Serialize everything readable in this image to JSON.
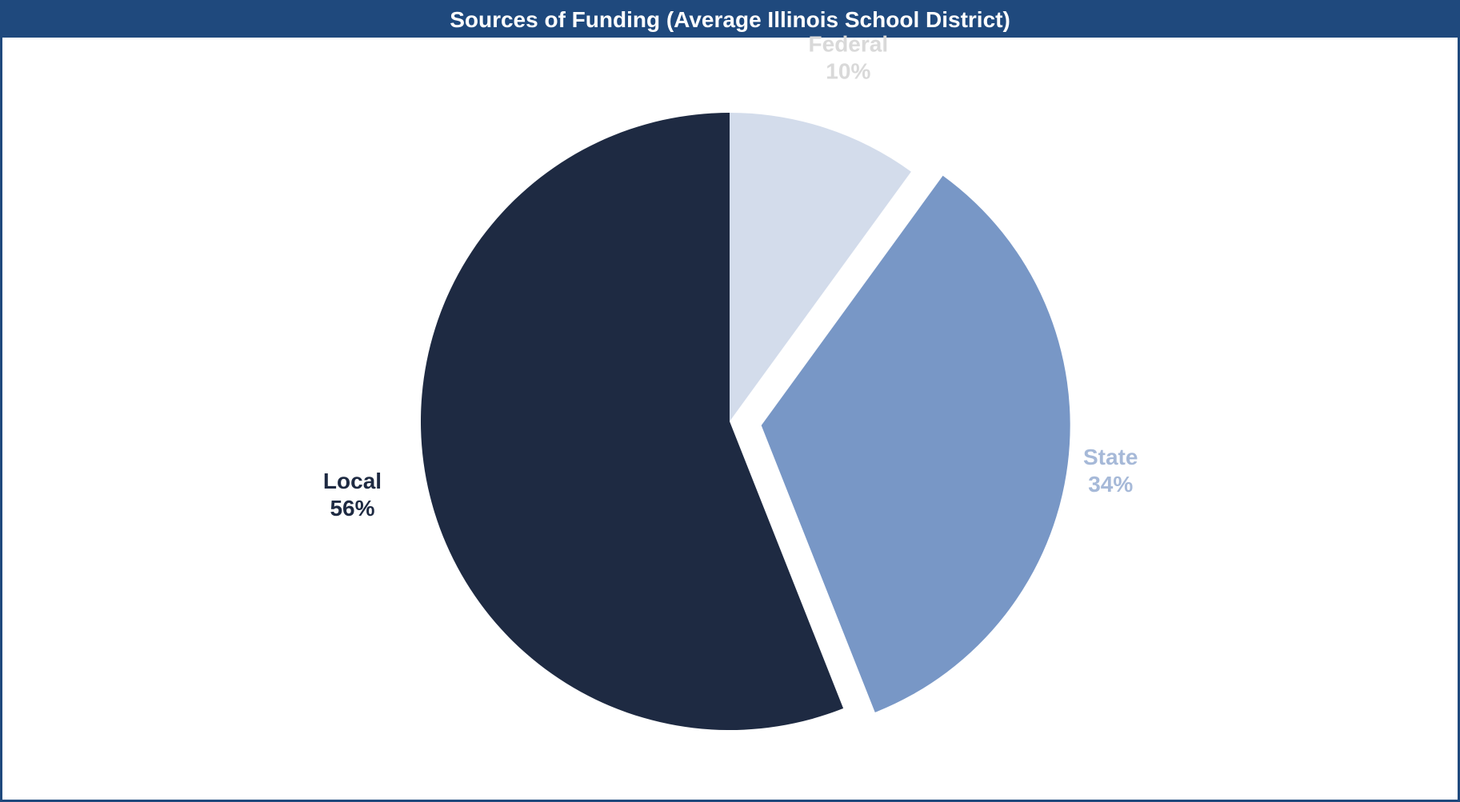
{
  "chart_data": {
    "type": "pie",
    "title": "Sources of Funding (Average Illinois School District)",
    "slices": [
      {
        "label": "Federal",
        "value": 10,
        "value_label": "10%",
        "color": "#d3dceb",
        "label_color": "#d9d9d9",
        "exploded": false
      },
      {
        "label": "State",
        "value": 34,
        "value_label": "34%",
        "color": "#7897c6",
        "label_color": "#a6b9d8",
        "exploded": true
      },
      {
        "label": "Local",
        "value": 56,
        "value_label": "56%",
        "color": "#1e2a42",
        "label_color": "#1e2a42",
        "exploded": false
      }
    ],
    "start_angle": "12 o'clock",
    "direction": "clockwise",
    "legend": "none",
    "colors": {
      "title_bar": "#1f497d",
      "title_text": "#ffffff",
      "border": "#1f497d"
    }
  }
}
